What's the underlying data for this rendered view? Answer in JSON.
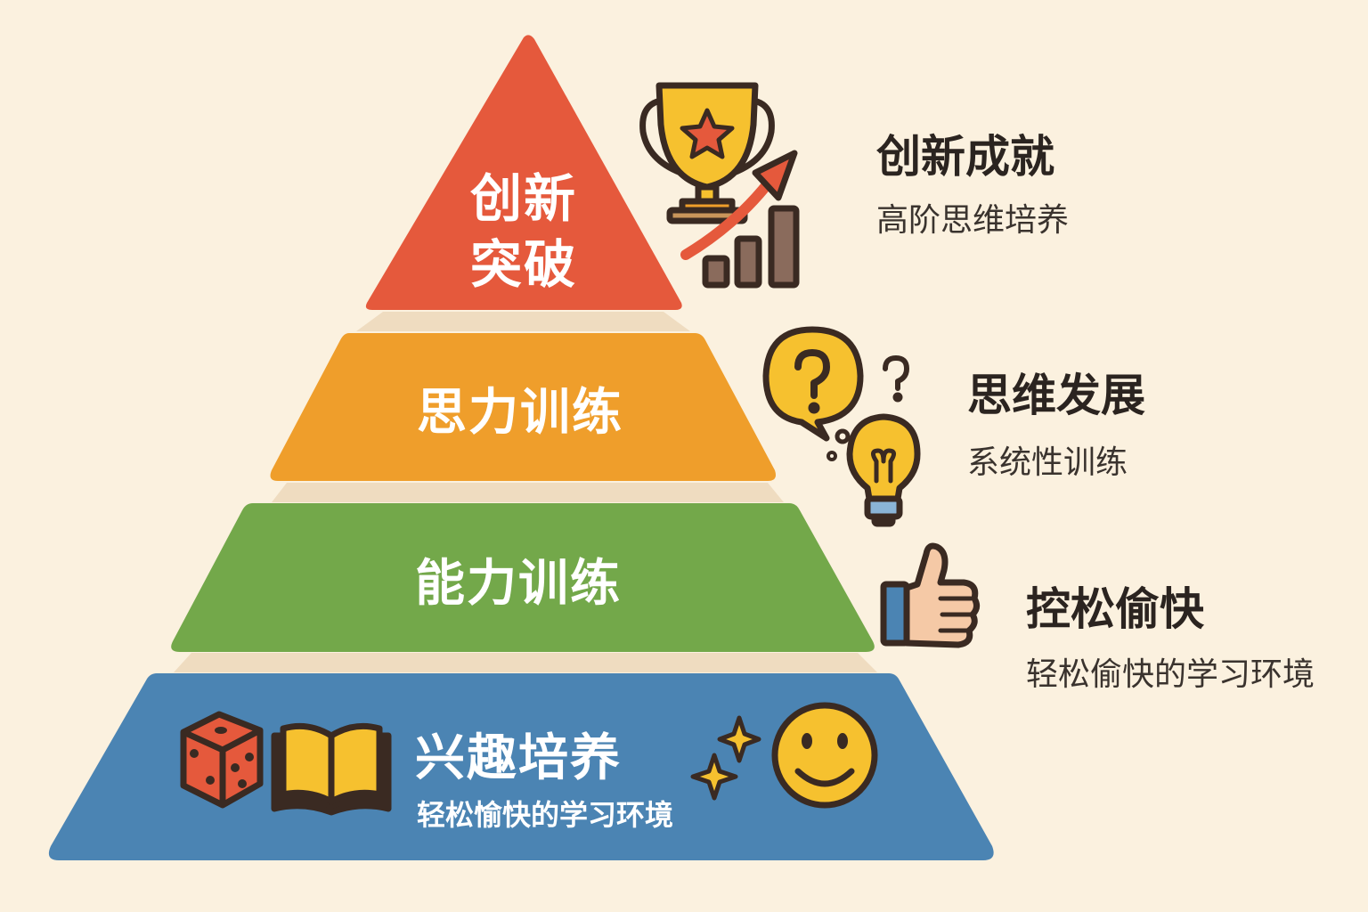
{
  "colors": {
    "background": "#fbf1df",
    "tier_top": "#e5593c",
    "tier_second": "#ef9e2b",
    "tier_third": "#73a84a",
    "tier_base": "#4b84b3",
    "shadow": "#efdcc0",
    "icon_outline": "#3a2a22",
    "icon_yellow": "#f6c12f"
  },
  "pyramid": {
    "top": {
      "line1": "创新",
      "line2": "突破"
    },
    "second": {
      "title": "思力训练"
    },
    "third": {
      "title": "能力训练"
    },
    "base": {
      "title": "兴趣培养",
      "subtitle": "轻松愉快的学习环境"
    }
  },
  "side_labels": [
    {
      "title": "创新成就",
      "subtitle": "高阶思维培养",
      "icon": "trophy-growth-icon"
    },
    {
      "title": "思维发展",
      "subtitle": "系统性训练",
      "icon": "question-lightbulb-icon"
    },
    {
      "title": "控松偷快",
      "subtitle": "轻松偷快的学习环境",
      "icon": "thumbs-up-icon"
    }
  ],
  "base_icons": [
    "dice-icon",
    "open-book-icon",
    "sparkle-icon",
    "smiley-icon"
  ]
}
